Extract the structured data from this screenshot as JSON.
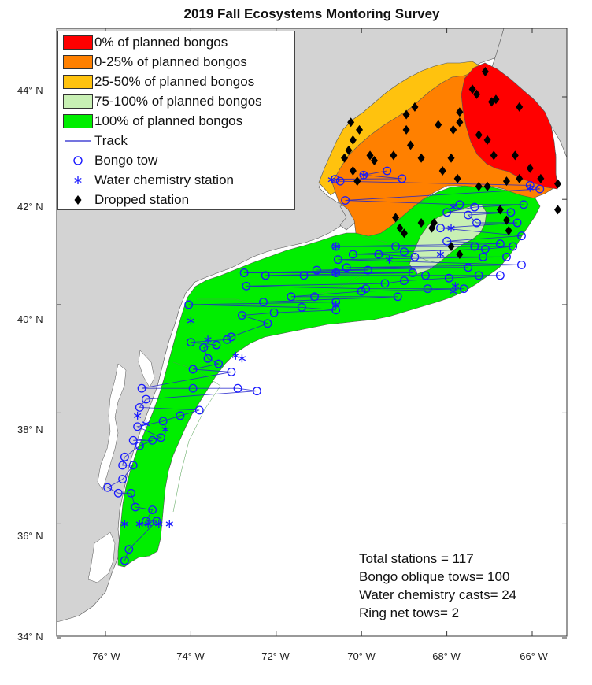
{
  "title": "2019 Fall Ecosystems Montoring Survey",
  "axes": {
    "lat_ticks": [
      "44° N",
      "42° N",
      "40° N",
      "38° N",
      "36° N",
      "34° N"
    ],
    "lon_ticks": [
      "76° W",
      "74° W",
      "72° W",
      "70° W",
      "68° W",
      "66° W"
    ]
  },
  "colors": {
    "land": "#d3d3d3",
    "zero": "#ff0000",
    "q1": "#ff8000",
    "q2": "#ffc20e",
    "q4": "#c8f0b4",
    "full": "#00ee00",
    "track": "#2222cc",
    "symbol": "#1a1aff",
    "dropped": "#000000"
  },
  "legend": [
    {
      "type": "patch",
      "color_key": "zero",
      "label": "0% of planned bongos"
    },
    {
      "type": "patch",
      "color_key": "q1",
      "label": "0-25% of planned bongos"
    },
    {
      "type": "patch",
      "color_key": "q2",
      "label": "25-50% of planned bongos"
    },
    {
      "type": "patch",
      "color_key": "q4",
      "label": "75-100% of planned bongos"
    },
    {
      "type": "patch",
      "color_key": "full",
      "label": "100% of planned bongos"
    },
    {
      "type": "line",
      "label": "Track"
    },
    {
      "type": "circle",
      "label": "Bongo tow"
    },
    {
      "type": "asterisk",
      "label": "Water chemistry station"
    },
    {
      "type": "diamond",
      "label": "Dropped station"
    }
  ],
  "stats": [
    "Total stations = 117",
    "Bongo oblique tows= 100",
    "Water chemistry casts= 24",
    "Ring net tows= 2"
  ],
  "bongo_stations": [
    [
      -70.62,
      42.39
    ],
    [
      -70.5,
      42.35
    ],
    [
      -69.95,
      42.47
    ],
    [
      -69.4,
      42.55
    ],
    [
      -69.05,
      42.4
    ],
    [
      -70.38,
      41.98
    ],
    [
      -66.05,
      42.27
    ],
    [
      -65.82,
      42.2
    ],
    [
      -66.2,
      41.9
    ],
    [
      -66.5,
      41.75
    ],
    [
      -66.25,
      41.3
    ],
    [
      -66.45,
      41.1
    ],
    [
      -66.6,
      40.9
    ],
    [
      -66.75,
      41.15
    ],
    [
      -67.1,
      41.05
    ],
    [
      -67.35,
      41.1
    ],
    [
      -67.3,
      41.55
    ],
    [
      -67.5,
      41.7
    ],
    [
      -67.35,
      41.85
    ],
    [
      -67.7,
      41.9
    ],
    [
      -68.0,
      41.75
    ],
    [
      -68.15,
      41.45
    ],
    [
      -68.0,
      41.2
    ],
    [
      -67.95,
      40.5
    ],
    [
      -67.5,
      40.7
    ],
    [
      -67.25,
      40.55
    ],
    [
      -67.15,
      40.9
    ],
    [
      -67.6,
      40.3
    ],
    [
      -68.5,
      40.55
    ],
    [
      -68.8,
      40.6
    ],
    [
      -69.0,
      40.45
    ],
    [
      -69.45,
      40.4
    ],
    [
      -69.9,
      40.3
    ],
    [
      -70.0,
      40.25
    ],
    [
      -68.75,
      40.9
    ],
    [
      -69.0,
      41.0
    ],
    [
      -69.2,
      41.1
    ],
    [
      -69.6,
      40.95
    ],
    [
      -70.2,
      40.95
    ],
    [
      -70.35,
      40.7
    ],
    [
      -69.85,
      40.65
    ],
    [
      -70.6,
      41.1
    ],
    [
      -70.6,
      40.6
    ],
    [
      -70.6,
      40.05
    ],
    [
      -70.6,
      39.9
    ],
    [
      -71.1,
      40.15
    ],
    [
      -71.4,
      39.95
    ],
    [
      -71.35,
      40.55
    ],
    [
      -71.65,
      40.15
    ],
    [
      -72.25,
      40.55
    ],
    [
      -72.75,
      40.6
    ],
    [
      -72.7,
      40.35
    ],
    [
      -72.3,
      40.05
    ],
    [
      -72.2,
      39.65
    ],
    [
      -72.05,
      39.85
    ],
    [
      -72.8,
      39.8
    ],
    [
      -73.05,
      39.4
    ],
    [
      -73.4,
      39.25
    ],
    [
      -73.7,
      39.2
    ],
    [
      -73.6,
      39.0
    ],
    [
      -73.35,
      38.9
    ],
    [
      -73.05,
      38.75
    ],
    [
      -72.9,
      38.45
    ],
    [
      -72.45,
      38.4
    ],
    [
      -73.95,
      38.8
    ],
    [
      -74.0,
      39.3
    ],
    [
      -74.05,
      40.0
    ],
    [
      -73.95,
      38.45
    ],
    [
      -73.8,
      38.05
    ],
    [
      -74.25,
      37.95
    ],
    [
      -74.65,
      37.85
    ],
    [
      -74.7,
      37.55
    ],
    [
      -74.9,
      37.5
    ],
    [
      -75.2,
      37.4
    ],
    [
      -75.25,
      37.75
    ],
    [
      -75.15,
      38.45
    ],
    [
      -75.05,
      38.25
    ],
    [
      -75.2,
      38.1
    ],
    [
      -75.35,
      37.5
    ],
    [
      -75.55,
      37.2
    ],
    [
      -75.35,
      37.05
    ],
    [
      -75.6,
      36.8
    ],
    [
      -75.4,
      36.55
    ],
    [
      -75.3,
      36.3
    ],
    [
      -75.45,
      35.55
    ],
    [
      -75.55,
      35.35
    ],
    [
      -75.05,
      36.05
    ],
    [
      -74.9,
      36.25
    ],
    [
      -74.8,
      36.05
    ],
    [
      -75.7,
      36.55
    ],
    [
      -75.95,
      36.65
    ],
    [
      -75.6,
      37.05
    ],
    [
      -73.15,
      39.35
    ],
    [
      -71.05,
      40.65
    ],
    [
      -70.55,
      40.85
    ],
    [
      -66.35,
      41.55
    ],
    [
      -66.25,
      40.75
    ],
    [
      -66.75,
      40.55
    ],
    [
      -68.45,
      40.3
    ],
    [
      -69.15,
      40.15
    ]
  ],
  "water_stations": [
    [
      -70.7,
      42.38
    ],
    [
      -69.95,
      42.47
    ],
    [
      -66.05,
      42.22
    ],
    [
      -67.85,
      41.85
    ],
    [
      -67.9,
      41.45
    ],
    [
      -68.15,
      40.95
    ],
    [
      -67.8,
      40.35
    ],
    [
      -67.85,
      40.25
    ],
    [
      -69.35,
      40.85
    ],
    [
      -70.6,
      41.1
    ],
    [
      -70.6,
      40.6
    ],
    [
      -70.6,
      40.0
    ],
    [
      -72.95,
      39.05
    ],
    [
      -72.8,
      39.0
    ],
    [
      -73.6,
      39.35
    ],
    [
      -74.0,
      39.7
    ],
    [
      -74.6,
      37.7
    ],
    [
      -75.05,
      37.8
    ],
    [
      -75.25,
      37.95
    ],
    [
      -75.55,
      36.0
    ],
    [
      -75.0,
      36.0
    ],
    [
      -74.75,
      36.0
    ],
    [
      -74.5,
      36.0
    ],
    [
      -75.2,
      36.0
    ]
  ],
  "dropped_stations": [
    [
      -67.1,
      44.5
    ],
    [
      -67.3,
      44.05
    ],
    [
      -67.4,
      44.15
    ],
    [
      -66.95,
      43.9
    ],
    [
      -66.85,
      43.95
    ],
    [
      -66.3,
      43.8
    ],
    [
      -67.7,
      43.7
    ],
    [
      -67.7,
      43.5
    ],
    [
      -68.2,
      43.45
    ],
    [
      -68.75,
      43.8
    ],
    [
      -68.95,
      43.65
    ],
    [
      -70.25,
      43.5
    ],
    [
      -70.05,
      43.35
    ],
    [
      -70.2,
      43.15
    ],
    [
      -70.3,
      42.95
    ],
    [
      -70.4,
      42.8
    ],
    [
      -70.2,
      42.55
    ],
    [
      -70.1,
      42.35
    ],
    [
      -69.8,
      42.85
    ],
    [
      -69.25,
      42.85
    ],
    [
      -68.85,
      43.05
    ],
    [
      -68.6,
      42.8
    ],
    [
      -68.95,
      43.35
    ],
    [
      -69.7,
      42.75
    ],
    [
      -67.85,
      43.35
    ],
    [
      -67.25,
      43.25
    ],
    [
      -67.05,
      43.15
    ],
    [
      -66.9,
      42.85
    ],
    [
      -66.4,
      42.85
    ],
    [
      -66.05,
      42.6
    ],
    [
      -67.9,
      42.8
    ],
    [
      -68.1,
      42.55
    ],
    [
      -67.75,
      42.4
    ],
    [
      -67.25,
      42.25
    ],
    [
      -67.05,
      42.25
    ],
    [
      -66.6,
      42.35
    ],
    [
      -66.3,
      42.4
    ],
    [
      -65.8,
      42.4
    ],
    [
      -65.4,
      42.3
    ],
    [
      -65.4,
      41.8
    ],
    [
      -68.3,
      41.55
    ],
    [
      -68.35,
      41.45
    ],
    [
      -68.6,
      41.55
    ],
    [
      -69.2,
      41.65
    ],
    [
      -69.1,
      41.45
    ],
    [
      -69.0,
      41.35
    ],
    [
      -67.9,
      41.1
    ],
    [
      -67.7,
      40.95
    ],
    [
      -66.75,
      41.8
    ],
    [
      -66.6,
      41.6
    ],
    [
      -66.55,
      41.4
    ]
  ]
}
